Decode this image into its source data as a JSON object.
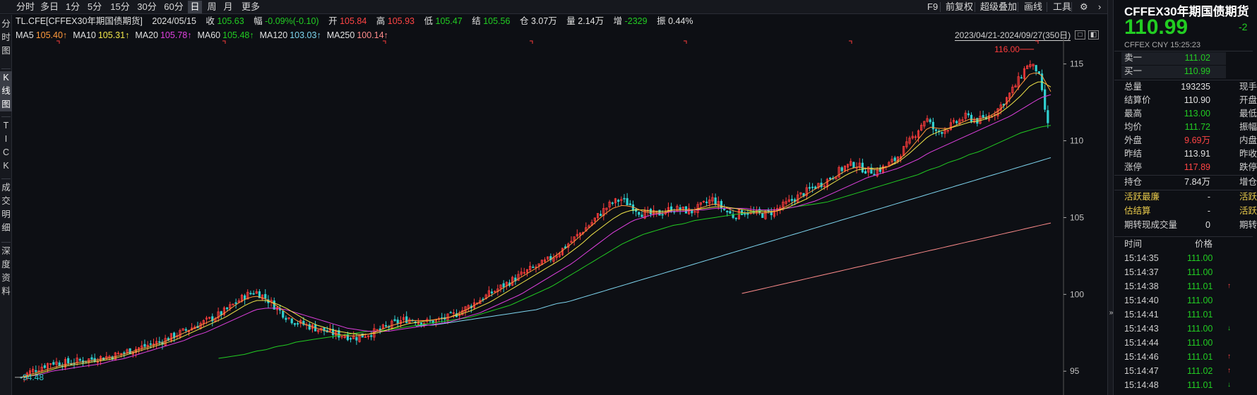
{
  "toolbar": {
    "periods": [
      "分时",
      "多日",
      "1分",
      "5分",
      "15分",
      "30分",
      "60分",
      "日",
      "周",
      "月",
      "更多"
    ],
    "active_period": "日",
    "right_items": [
      "F9",
      "前复权",
      "超级叠加",
      "画线",
      "工具"
    ],
    "gear": "⚙",
    "arrow": "›"
  },
  "vtabs": [
    {
      "label": [
        "分",
        "时",
        "图"
      ],
      "active": false
    },
    {
      "label": [
        "K",
        "线",
        "图"
      ],
      "active": true
    },
    {
      "label": [
        "T",
        "I",
        "C",
        "K"
      ],
      "active": false
    },
    {
      "label": [
        "成",
        "交",
        "明",
        "细"
      ],
      "active": false
    },
    {
      "label": [
        "深",
        "度",
        "资",
        "料"
      ],
      "active": false
    }
  ],
  "info": {
    "symbol": "TL.CFE[CFFEX30年期国债期货]",
    "date": "2024/05/15",
    "close_label": "收",
    "close": "105.63",
    "range_label": "幅",
    "range": "-0.09%(-0.10)",
    "open_label": "开",
    "open": "105.84",
    "high_label": "高",
    "high": "105.93",
    "low_label": "低",
    "low": "105.47",
    "settle_label": "结",
    "settle": "105.56",
    "oi_label": "仓",
    "oi": "3.07万",
    "vol_label": "量",
    "vol": "2.14万",
    "inc_label": "增",
    "inc": "-2329",
    "amp_label": "振",
    "amp": "0.44%"
  },
  "ma": [
    {
      "name": "MA5",
      "value": "105.40↑",
      "color": "#ff9a3c"
    },
    {
      "name": "MA10",
      "value": "105.31↑",
      "color": "#f2e64a"
    },
    {
      "name": "MA20",
      "value": "105.78↑",
      "color": "#e040e0"
    },
    {
      "name": "MA60",
      "value": "105.48↑",
      "color": "#22cc22"
    },
    {
      "name": "MA120",
      "value": "103.03↑",
      "color": "#7fd6f0"
    },
    {
      "name": "MA250",
      "value": "100.14↑",
      "color": "#ff8c8c"
    }
  ],
  "date_range": "2023/04/21-2024/09/27(350日)",
  "chart_data": {
    "type": "candlestick",
    "y_ticks": [
      "115",
      "110",
      "105",
      "100",
      "95"
    ],
    "ylim": [
      94.0,
      116.5
    ],
    "max_label": "116.00",
    "min_label": "94.48",
    "closes": [
      94.6,
      95.0,
      95.3,
      95.6,
      95.5,
      95.6,
      95.7,
      95.8,
      95.9,
      96.0,
      96.2,
      96.4,
      96.6,
      96.8,
      97.0,
      97.3,
      97.6,
      97.9,
      98.2,
      98.5,
      98.9,
      99.4,
      99.9,
      100.2,
      99.8,
      99.2,
      98.6,
      98.2,
      98.0,
      97.8,
      97.6,
      97.4,
      97.3,
      97.2,
      97.4,
      97.6,
      97.9,
      98.2,
      98.4,
      98.3,
      98.2,
      98.3,
      98.5,
      98.8,
      99.2,
      99.6,
      100.0,
      100.4,
      100.8,
      101.2,
      101.6,
      101.9,
      102.3,
      102.8,
      103.4,
      104.0,
      104.6,
      105.3,
      105.9,
      106.2,
      105.8,
      105.3,
      105.2,
      105.3,
      105.6,
      105.5,
      105.4,
      105.8,
      106.2,
      105.6,
      105.1,
      105.4,
      105.3,
      105.2,
      105.4,
      105.8,
      106.2,
      106.6,
      107.0,
      107.3,
      107.8,
      108.3,
      108.5,
      108.1,
      108.0,
      108.3,
      108.8,
      109.6,
      110.5,
      111.5,
      110.5,
      110.8,
      111.2,
      111.6,
      111.3,
      111.5,
      112.0,
      112.8,
      113.8,
      115.0,
      114.6,
      111.0
    ],
    "ma5": [
      94.6,
      94.8,
      95.0,
      95.2,
      95.4,
      95.5,
      95.6,
      95.7,
      95.8,
      95.9,
      96.1,
      96.3,
      96.5,
      96.7,
      96.9,
      97.2,
      97.5,
      97.8,
      98.1,
      98.4,
      98.8,
      99.3,
      99.7,
      99.9,
      99.7,
      99.3,
      98.8,
      98.3,
      98.0,
      97.8,
      97.6,
      97.4,
      97.3,
      97.3,
      97.4,
      97.6,
      97.9,
      98.1,
      98.3,
      98.3,
      98.3,
      98.4,
      98.5,
      98.8,
      99.1,
      99.5,
      99.9,
      100.3,
      100.7,
      101.1,
      101.5,
      101.9,
      102.3,
      102.8,
      103.3,
      103.9,
      104.5,
      105.1,
      105.6,
      105.8,
      105.7,
      105.4,
      105.3,
      105.3,
      105.5,
      105.5,
      105.5,
      105.7,
      105.9,
      105.7,
      105.4,
      105.3,
      105.3,
      105.3,
      105.4,
      105.7,
      106.1,
      106.5,
      106.9,
      107.3,
      107.7,
      108.1,
      108.3,
      108.2,
      108.1,
      108.3,
      108.7,
      109.3,
      110.1,
      110.9,
      110.8,
      110.8,
      111.1,
      111.4,
      111.4,
      111.6,
      112.0,
      112.7,
      113.6,
      114.4,
      114.4,
      113.2
    ],
    "ma10": [
      94.6,
      94.7,
      94.9,
      95.1,
      95.3,
      95.4,
      95.5,
      95.6,
      95.7,
      95.8,
      96.0,
      96.2,
      96.4,
      96.6,
      96.8,
      97.0,
      97.3,
      97.6,
      97.9,
      98.2,
      98.5,
      98.9,
      99.3,
      99.6,
      99.6,
      99.4,
      99.1,
      98.7,
      98.3,
      98.0,
      97.8,
      97.6,
      97.5,
      97.4,
      97.4,
      97.5,
      97.7,
      97.9,
      98.1,
      98.2,
      98.3,
      98.4,
      98.5,
      98.7,
      98.9,
      99.2,
      99.5,
      99.9,
      100.3,
      100.7,
      101.1,
      101.5,
      101.9,
      102.3,
      102.8,
      103.3,
      103.9,
      104.4,
      104.9,
      105.3,
      105.5,
      105.5,
      105.4,
      105.4,
      105.5,
      105.5,
      105.5,
      105.6,
      105.7,
      105.7,
      105.6,
      105.5,
      105.4,
      105.4,
      105.4,
      105.6,
      105.9,
      106.2,
      106.6,
      107.0,
      107.4,
      107.8,
      108.1,
      108.2,
      108.2,
      108.3,
      108.6,
      109.1,
      109.7,
      110.3,
      110.6,
      110.8,
      111.0,
      111.2,
      111.3,
      111.5,
      111.8,
      112.3,
      112.9,
      113.6,
      113.9,
      113.5
    ],
    "ma20": [
      94.6,
      94.7,
      94.8,
      95.0,
      95.1,
      95.2,
      95.3,
      95.4,
      95.5,
      95.7,
      95.8,
      96.0,
      96.2,
      96.4,
      96.6,
      96.8,
      97.0,
      97.3,
      97.5,
      97.8,
      98.1,
      98.4,
      98.7,
      99.0,
      99.1,
      99.1,
      99.0,
      98.8,
      98.6,
      98.4,
      98.2,
      98.0,
      97.8,
      97.7,
      97.6,
      97.6,
      97.6,
      97.7,
      97.8,
      97.9,
      98.0,
      98.1,
      98.2,
      98.4,
      98.6,
      98.8,
      99.1,
      99.4,
      99.7,
      100.0,
      100.4,
      100.8,
      101.2,
      101.6,
      102.0,
      102.5,
      103.0,
      103.5,
      104.0,
      104.4,
      104.8,
      105.0,
      105.2,
      105.3,
      105.4,
      105.4,
      105.5,
      105.5,
      105.6,
      105.6,
      105.6,
      105.6,
      105.5,
      105.5,
      105.5,
      105.6,
      105.7,
      105.9,
      106.1,
      106.4,
      106.7,
      107.0,
      107.3,
      107.6,
      107.8,
      108.0,
      108.2,
      108.5,
      108.8,
      109.2,
      109.5,
      109.8,
      110.1,
      110.4,
      110.7,
      111.0,
      111.3,
      111.6,
      112.0,
      112.4,
      112.8,
      113.0
    ],
    "ma60": [
      null,
      null,
      null,
      null,
      null,
      null,
      null,
      null,
      null,
      null,
      null,
      null,
      null,
      null,
      null,
      null,
      null,
      null,
      null,
      95.8,
      95.9,
      96.0,
      96.1,
      96.3,
      96.4,
      96.6,
      96.7,
      96.9,
      97.0,
      97.1,
      97.2,
      97.3,
      97.4,
      97.5,
      97.6,
      97.6,
      97.7,
      97.8,
      97.9,
      98.0,
      98.1,
      98.2,
      98.3,
      98.4,
      98.5,
      98.7,
      98.9,
      99.1,
      99.3,
      99.6,
      99.9,
      100.2,
      100.5,
      100.9,
      101.3,
      101.7,
      102.1,
      102.5,
      102.9,
      103.3,
      103.6,
      103.9,
      104.1,
      104.3,
      104.5,
      104.6,
      104.8,
      104.9,
      105.0,
      105.1,
      105.2,
      105.3,
      105.4,
      105.5,
      105.5,
      105.6,
      105.7,
      105.8,
      105.9,
      106.0,
      106.2,
      106.4,
      106.6,
      106.8,
      107.0,
      107.2,
      107.4,
      107.6,
      107.8,
      108.1,
      108.3,
      108.6,
      108.8,
      109.1,
      109.3,
      109.6,
      109.9,
      110.2,
      110.5,
      110.7,
      110.9,
      111.0
    ],
    "ma120": [
      null,
      null,
      null,
      null,
      null,
      null,
      null,
      null,
      null,
      null,
      null,
      null,
      null,
      null,
      null,
      null,
      null,
      null,
      null,
      null,
      null,
      null,
      null,
      null,
      null,
      null,
      null,
      null,
      null,
      null,
      null,
      null,
      null,
      null,
      null,
      null,
      null,
      null,
      97.9,
      98.0,
      98.0,
      98.1,
      98.2,
      98.3,
      98.4,
      98.5,
      98.6,
      98.7,
      98.8,
      98.9,
      99.0,
      99.2,
      99.4,
      99.5,
      99.7,
      99.9,
      100.1,
      100.3,
      100.5,
      100.7,
      100.9,
      101.1,
      101.3,
      101.5,
      101.7,
      101.9,
      102.1,
      102.3,
      102.5,
      102.7,
      102.9,
      103.1,
      103.3,
      103.5,
      103.7,
      103.9,
      104.1,
      104.3,
      104.5,
      104.7,
      104.9,
      105.1,
      105.3,
      105.5,
      105.7,
      105.9,
      106.1,
      106.3,
      106.5,
      106.7,
      106.9,
      107.1,
      107.3,
      107.5,
      107.7,
      107.9,
      108.1,
      108.3,
      108.5,
      108.7,
      108.9
    ],
    "ma250": [
      null,
      null,
      null,
      null,
      null,
      null,
      null,
      null,
      null,
      null,
      null,
      null,
      null,
      null,
      null,
      null,
      null,
      null,
      null,
      null,
      null,
      null,
      null,
      null,
      null,
      null,
      null,
      null,
      null,
      null,
      null,
      null,
      null,
      null,
      null,
      null,
      null,
      null,
      null,
      null,
      null,
      null,
      null,
      null,
      null,
      null,
      null,
      null,
      null,
      null,
      null,
      null,
      null,
      null,
      null,
      null,
      null,
      null,
      null,
      null,
      null,
      null,
      null,
      null,
      null,
      null,
      null,
      null,
      null,
      null,
      null,
      100.0,
      100.15,
      100.3,
      100.45,
      100.6,
      100.75,
      100.9,
      101.05,
      101.2,
      101.35,
      101.5,
      101.65,
      101.8,
      101.95,
      102.1,
      102.25,
      102.4,
      102.55,
      102.7,
      102.85,
      103.0,
      103.15,
      103.3,
      103.45,
      103.6,
      103.75,
      103.9,
      104.05,
      104.2,
      104.35,
      104.5,
      104.65
    ],
    "legend": [
      "MA5",
      "MA10",
      "MA20",
      "MA60",
      "MA120",
      "MA250"
    ],
    "grid": false
  },
  "colors": {
    "up": "#ff3c3c",
    "down": "#30d0d0",
    "bg": "#0d0f14",
    "axis": "#c0c0c0"
  },
  "quote": {
    "title": "CFFEX30年期国债期货",
    "price": "110.99",
    "change": "-2",
    "sub": "CFFEX  CNY  15:25:23",
    "ask_label": "卖一",
    "ask": "111.02",
    "bid_label": "买一",
    "bid": "110.99",
    "stats": [
      {
        "label": "总量",
        "value": "193235",
        "color": "#e0e0e0",
        "label2": "现手"
      },
      {
        "label": "结算价",
        "value": "110.90",
        "color": "#e0e0e0",
        "label2": "开盘"
      },
      {
        "label": "最高",
        "value": "113.00",
        "color": "#22cc22",
        "label2": "最低"
      },
      {
        "label": "均价",
        "value": "111.72",
        "color": "#22cc22",
        "label2": "振幅"
      },
      {
        "label": "外盘",
        "value": "9.69万",
        "color": "#ff4444",
        "label2": "内盘"
      },
      {
        "label": "昨结",
        "value": "113.91",
        "color": "#e0e0e0",
        "label2": "昨收"
      },
      {
        "label": "涨停",
        "value": "117.89",
        "color": "#ff4444",
        "label2": "跌停"
      }
    ],
    "hold_label": "持仓",
    "hold": "7.84万",
    "hold_label2": "增仓",
    "extra": [
      {
        "label": "活跃最廉",
        "value": "-",
        "label2": "活跃"
      },
      {
        "label": "估结算",
        "value": "-",
        "label2": "活跃"
      },
      {
        "label": "期转现成交量",
        "value": "0",
        "label2": "期转"
      }
    ],
    "ticks_header": {
      "time": "时间",
      "price": "价格"
    },
    "ticks": [
      {
        "time": "15:14:35",
        "price": "111.00",
        "arrow": ""
      },
      {
        "time": "15:14:37",
        "price": "111.00",
        "arrow": ""
      },
      {
        "time": "15:14:38",
        "price": "111.01",
        "arrow": "↑",
        "dir": "up"
      },
      {
        "time": "15:14:40",
        "price": "111.00",
        "arrow": ""
      },
      {
        "time": "15:14:41",
        "price": "111.01",
        "arrow": ""
      },
      {
        "time": "15:14:43",
        "price": "111.00",
        "arrow": "↓",
        "dir": "down"
      },
      {
        "time": "15:14:44",
        "price": "111.00",
        "arrow": ""
      },
      {
        "time": "15:14:46",
        "price": "111.01",
        "arrow": "↑",
        "dir": "up"
      },
      {
        "time": "15:14:47",
        "price": "111.02",
        "arrow": "↑",
        "dir": "up"
      },
      {
        "time": "15:14:48",
        "price": "111.01",
        "arrow": "↓",
        "dir": "down"
      }
    ]
  }
}
